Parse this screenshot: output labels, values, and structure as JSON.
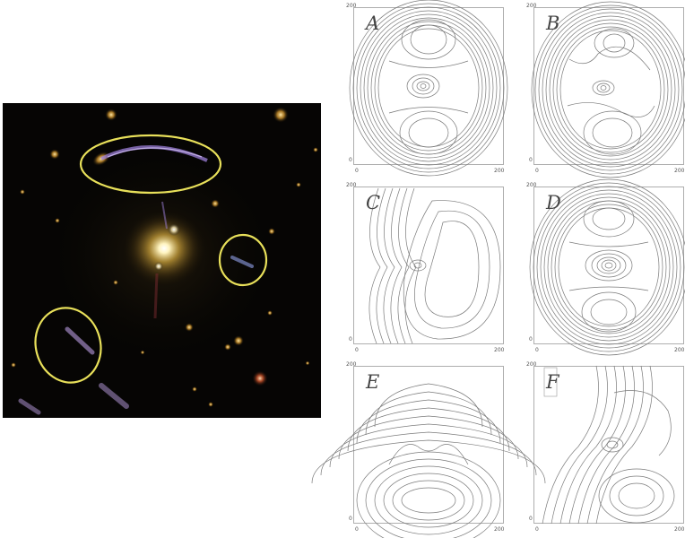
{
  "figure": {
    "panels": [
      {
        "id": "A",
        "letter": "A",
        "x_ticks": [
          "0",
          "200"
        ],
        "y_ticks": [
          "0",
          "200"
        ]
      },
      {
        "id": "B",
        "letter": "B",
        "x_ticks": [
          "0",
          "200"
        ],
        "y_ticks": [
          "0",
          "200"
        ]
      },
      {
        "id": "C",
        "letter": "C",
        "x_ticks": [
          "0",
          "200"
        ],
        "y_ticks": [
          "0",
          "200"
        ]
      },
      {
        "id": "D",
        "letter": "D",
        "x_ticks": [
          "0",
          "200"
        ],
        "y_ticks": [
          "0",
          "200"
        ]
      },
      {
        "id": "E",
        "letter": "E",
        "x_ticks": [
          "0",
          "200"
        ],
        "y_ticks": [
          "0",
          "200"
        ]
      },
      {
        "id": "F",
        "letter": "F",
        "x_ticks": [
          "0",
          "200"
        ],
        "y_ticks": [
          "0",
          "200"
        ]
      }
    ],
    "colors": {
      "contour": "#7a7a7a",
      "highlight_ellipse": "#e8e05a",
      "sky": "#060504",
      "cluster_glow": "#d7b24a"
    }
  }
}
